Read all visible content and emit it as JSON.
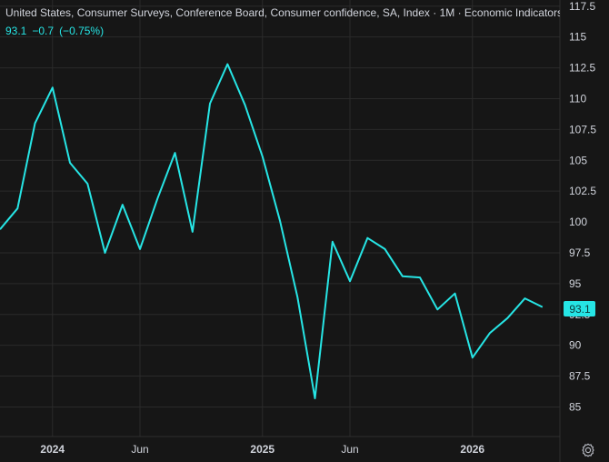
{
  "header": {
    "title": "United States, Consumer Surveys, Conference Board, Consumer confidence, SA, Index · 1M · Economic Indicators",
    "last_value": "93.1",
    "change": "−0.7",
    "change_pct": "(−0.75%)"
  },
  "price_label": "93.1",
  "colors": {
    "background": "#161616",
    "line": "#26e5e5",
    "grid": "#2a2a2a",
    "axis_text": "#d1d4dc",
    "label_bg": "#26e5e5",
    "label_text": "#0b3a3a"
  },
  "icons": {
    "settings": "gear-icon"
  },
  "chart_data": {
    "type": "line",
    "title": "United States, Consumer Surveys, Conference Board, Consumer confidence, SA, Index · 1M · Economic Indicators",
    "x_ticks": [
      {
        "label": "2024",
        "date": "2024-01"
      },
      {
        "label": "Jun",
        "date": "2024-06"
      },
      {
        "label": "2025",
        "date": "2025-01"
      },
      {
        "label": "Jun",
        "date": "2025-06"
      },
      {
        "label": "2026",
        "date": "2026-01"
      }
    ],
    "y_ticks": [
      "85",
      "87.5",
      "90",
      "92.5",
      "95",
      "97.5",
      "100",
      "102.5",
      "105",
      "107.5",
      "110",
      "112.5",
      "115",
      "117.5"
    ],
    "xlim": [
      "2023-10",
      "2026-06"
    ],
    "ylim": [
      82.6,
      118
    ],
    "grid": true,
    "series": [
      {
        "dates": [
          "2023-10",
          "2023-11",
          "2023-12",
          "2024-01",
          "2024-02",
          "2024-03",
          "2024-04",
          "2024-05",
          "2024-06",
          "2024-07",
          "2024-08",
          "2024-09",
          "2024-10",
          "2024-11",
          "2024-12",
          "2025-01",
          "2025-02",
          "2025-03",
          "2025-04",
          "2025-05",
          "2025-06",
          "2025-07",
          "2025-08",
          "2025-09",
          "2025-10",
          "2025-11",
          "2025-12",
          "2026-01",
          "2026-02",
          "2026-03",
          "2026-04",
          "2026-05"
        ],
        "values": [
          99.4,
          101.1,
          108.0,
          110.9,
          104.8,
          103.1,
          97.5,
          101.4,
          97.8,
          101.9,
          105.6,
          99.2,
          109.6,
          112.8,
          109.5,
          105.3,
          100.1,
          93.9,
          85.7,
          98.4,
          95.2,
          98.7,
          97.8,
          95.6,
          95.5,
          92.9,
          94.2,
          89.0,
          91.0,
          92.2,
          93.8,
          93.1
        ]
      }
    ]
  }
}
